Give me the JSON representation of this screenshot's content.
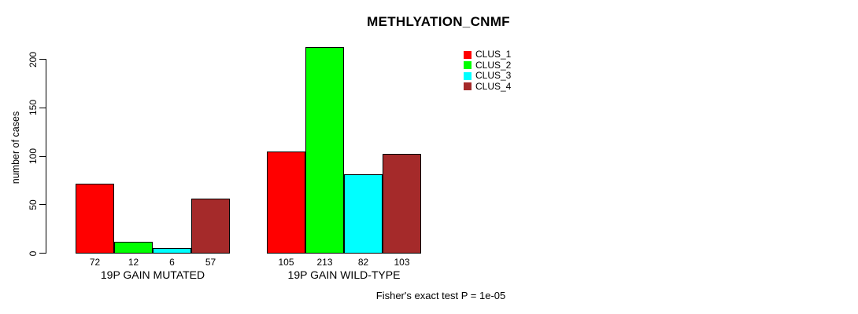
{
  "title": "METHLYATION_CNMF",
  "footer": "Fisher's exact test P = 1e-05",
  "legend": {
    "items": [
      {
        "label": "CLUS_1",
        "color": "#FF0000"
      },
      {
        "label": "CLUS_2",
        "color": "#00FF00"
      },
      {
        "label": "CLUS_3",
        "color": "#00FFFF"
      },
      {
        "label": "CLUS_4",
        "color": "#A52A2A"
      }
    ]
  },
  "chart_data": {
    "type": "bar",
    "title": "METHLYATION_CNMF",
    "ylabel": "number of cases",
    "xlabel": "",
    "categories": [
      "19P GAIN MUTATED",
      "19P GAIN WILD-TYPE"
    ],
    "series": [
      {
        "name": "CLUS_1",
        "color": "#FF0000",
        "values": [
          72,
          105
        ]
      },
      {
        "name": "CLUS_2",
        "color": "#00FF00",
        "values": [
          12,
          213
        ]
      },
      {
        "name": "CLUS_3",
        "color": "#00FFFF",
        "values": [
          6,
          82
        ]
      },
      {
        "name": "CLUS_4",
        "color": "#A52A2A",
        "values": [
          57,
          103
        ]
      }
    ],
    "bar_labels": [
      [
        72,
        12,
        6,
        57
      ],
      [
        105,
        213,
        82,
        103
      ]
    ],
    "yticks": [
      0,
      50,
      100,
      150,
      200
    ],
    "ylim": [
      0,
      215
    ],
    "grid": false,
    "legend_position": "top-right",
    "bar_border_color": "#000000",
    "annotation": "Fisher's exact test P = 1e-05"
  }
}
